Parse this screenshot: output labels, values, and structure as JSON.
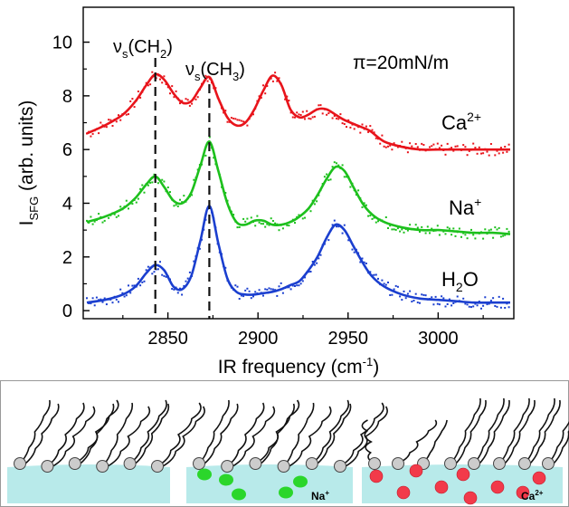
{
  "chart_data": {
    "type": "line",
    "xlabel": "IR frequency (cm",
    "xlabel_sup": "-1",
    "xlabel_suffix": ")",
    "ylabel": "I",
    "ylabel_sub": "SFG",
    "ylabel_suffix": " (arb. units)",
    "xlim": [
      2803,
      3042
    ],
    "ylim": [
      -0.3,
      11.3
    ],
    "xticks": [
      2850,
      2900,
      2950,
      3000
    ],
    "yticks": [
      0,
      2,
      4,
      6,
      8,
      10
    ],
    "annotation": "π=20mN/m",
    "peak_markers": [
      {
        "x": 2843,
        "label": "ν",
        "sub": "s",
        "group": "(CH",
        "group_sub": "2",
        "close": ")"
      },
      {
        "x": 2873,
        "label": "ν",
        "sub": "s",
        "group": "(CH",
        "group_sub": "3",
        "close": ")"
      }
    ],
    "series": [
      {
        "name": "Ca",
        "sup": "2+",
        "color": "#e8141b",
        "x": [
          2805,
          2815,
          2825,
          2832,
          2838,
          2843,
          2848,
          2853,
          2858,
          2863,
          2868,
          2873,
          2878,
          2883,
          2888,
          2893,
          2898,
          2903,
          2908,
          2913,
          2918,
          2923,
          2928,
          2933,
          2938,
          2943,
          2948,
          2955,
          2962,
          2970,
          2980,
          2990,
          3000,
          3010,
          3020,
          3030,
          3040
        ],
        "values": [
          6.6,
          6.9,
          7.3,
          7.8,
          8.4,
          8.8,
          8.6,
          8.1,
          7.75,
          7.8,
          8.3,
          8.7,
          7.9,
          7.2,
          6.9,
          7.0,
          7.5,
          8.2,
          8.75,
          8.4,
          7.5,
          7.2,
          7.3,
          7.5,
          7.5,
          7.3,
          7.1,
          6.9,
          6.7,
          6.3,
          6.1,
          6.0,
          6.0,
          6.0,
          6.0,
          6.0,
          6.0
        ]
      },
      {
        "name": "Na",
        "sup": "+",
        "color": "#1dc01d",
        "x": [
          2805,
          2815,
          2825,
          2832,
          2838,
          2843,
          2848,
          2853,
          2858,
          2863,
          2868,
          2873,
          2878,
          2883,
          2888,
          2893,
          2898,
          2903,
          2908,
          2913,
          2918,
          2923,
          2928,
          2933,
          2938,
          2943,
          2948,
          2953,
          2958,
          2963,
          2970,
          2980,
          2990,
          3000,
          3010,
          3020,
          3030,
          3040
        ],
        "values": [
          3.3,
          3.5,
          3.8,
          4.2,
          4.7,
          5.0,
          4.6,
          4.1,
          4.0,
          4.4,
          5.4,
          6.3,
          5.2,
          4.0,
          3.3,
          3.2,
          3.35,
          3.35,
          3.2,
          3.2,
          3.3,
          3.5,
          3.8,
          4.3,
          4.9,
          5.35,
          5.2,
          4.6,
          4.0,
          3.6,
          3.3,
          3.1,
          3.0,
          3.0,
          2.95,
          2.9,
          2.9,
          2.85
        ]
      },
      {
        "name": "H",
        "sub": "2",
        "tail": "O",
        "color": "#1b3fcf",
        "x": [
          2805,
          2815,
          2825,
          2832,
          2838,
          2843,
          2848,
          2853,
          2858,
          2863,
          2868,
          2873,
          2878,
          2883,
          2888,
          2893,
          2898,
          2903,
          2908,
          2913,
          2918,
          2923,
          2928,
          2933,
          2938,
          2943,
          2948,
          2953,
          2958,
          2963,
          2970,
          2980,
          2990,
          3000,
          3010,
          3020,
          3030,
          3040
        ],
        "values": [
          0.3,
          0.4,
          0.6,
          0.9,
          1.4,
          1.7,
          1.5,
          0.9,
          0.8,
          1.3,
          2.6,
          3.9,
          2.5,
          1.2,
          0.7,
          0.6,
          0.6,
          0.65,
          0.7,
          0.8,
          0.95,
          1.1,
          1.5,
          2.0,
          2.7,
          3.2,
          3.0,
          2.4,
          1.8,
          1.3,
          0.9,
          0.6,
          0.45,
          0.4,
          0.35,
          0.3,
          0.3,
          0.3
        ]
      }
    ]
  },
  "schematic": {
    "panels": [
      {
        "ion": "",
        "ion_sup": "",
        "ion_color": ""
      },
      {
        "ion": "Na",
        "ion_sup": "+",
        "ion_color": "#2bd62b"
      },
      {
        "ion": "Ca",
        "ion_sup": "2+",
        "ion_color": "#f23a4a"
      }
    ],
    "water_color": "#b8eaea",
    "headgroup_color": "#cccccc"
  }
}
